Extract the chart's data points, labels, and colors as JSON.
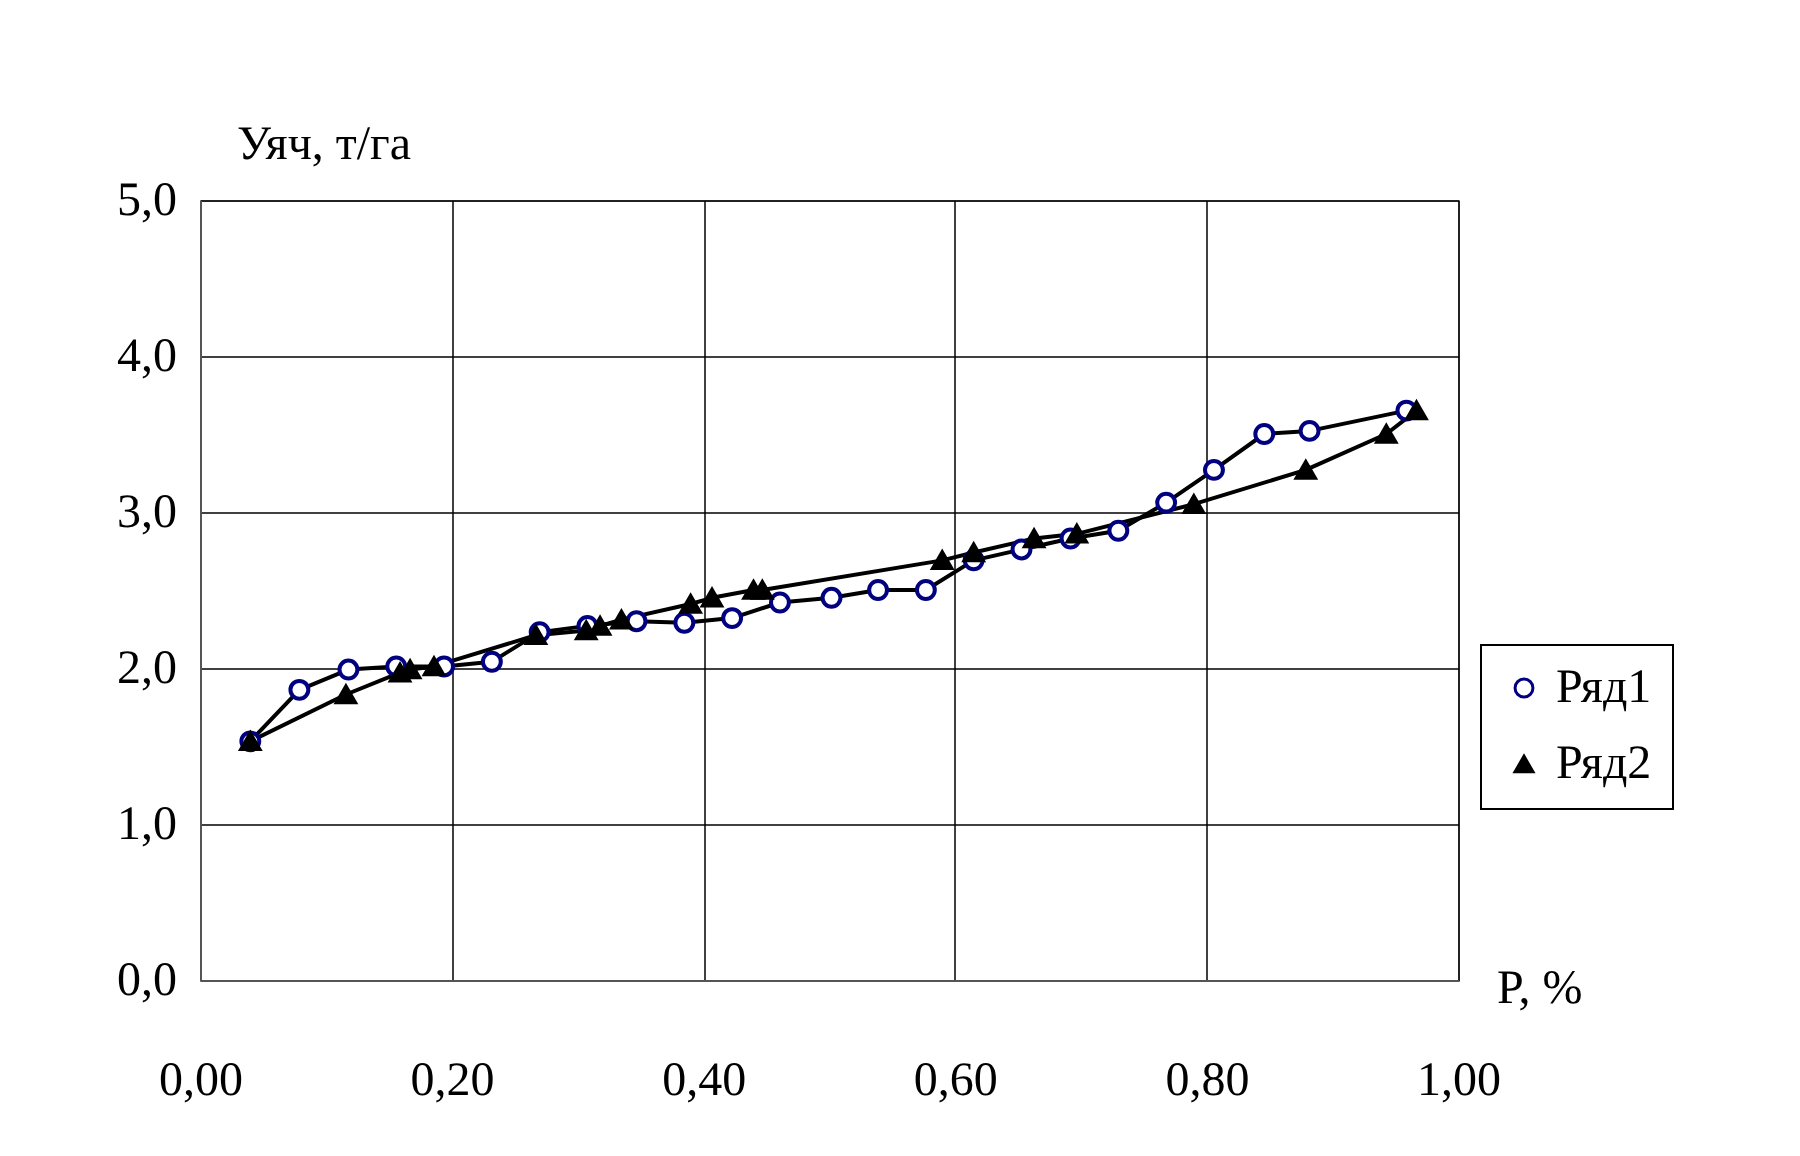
{
  "chart_data": {
    "type": "line",
    "xlabel": "P, %",
    "ylabel": "Уяч, т/га",
    "xlim": [
      0,
      1
    ],
    "ylim": [
      0,
      5
    ],
    "xticks": [
      {
        "value": 0,
        "label": "0,00"
      },
      {
        "value": 0.2,
        "label": "0,20"
      },
      {
        "value": 0.4,
        "label": "0,40"
      },
      {
        "value": 0.6,
        "label": "0,60"
      },
      {
        "value": 0.8,
        "label": "0,80"
      },
      {
        "value": 1,
        "label": "1,00"
      }
    ],
    "yticks": [
      {
        "value": 0,
        "label": "0,0"
      },
      {
        "value": 1,
        "label": "1,0"
      },
      {
        "value": 2,
        "label": "2,0"
      },
      {
        "value": 3,
        "label": "3,0"
      },
      {
        "value": 4,
        "label": "4,0"
      },
      {
        "value": 5,
        "label": "5,0"
      }
    ],
    "grid": true,
    "legend": "right",
    "line_style": "solid",
    "series": [
      {
        "name": "Ряд1",
        "color": "#000080",
        "marker": "circle",
        "x": [
          0.04,
          0.079,
          0.118,
          0.156,
          0.194,
          0.232,
          0.27,
          0.308,
          0.347,
          0.385,
          0.423,
          0.461,
          0.502,
          0.539,
          0.577,
          0.615,
          0.653,
          0.692,
          0.73,
          0.768,
          0.806,
          0.846,
          0.882,
          0.959
        ],
        "values": [
          1.53,
          1.86,
          1.99,
          2.01,
          2.01,
          2.04,
          2.23,
          2.27,
          2.3,
          2.29,
          2.32,
          2.42,
          2.45,
          2.5,
          2.5,
          2.69,
          2.76,
          2.83,
          2.88,
          3.06,
          3.27,
          3.5,
          3.52,
          3.65
        ]
      },
      {
        "name": "Ряд2",
        "color": "#000000",
        "marker": "triangle",
        "x": [
          0.04,
          0.116,
          0.159,
          0.167,
          0.186,
          0.267,
          0.307,
          0.318,
          0.335,
          0.39,
          0.407,
          0.44,
          0.447,
          0.59,
          0.615,
          0.663,
          0.697,
          0.79,
          0.879,
          0.943,
          0.967
        ],
        "values": [
          1.53,
          1.83,
          1.97,
          1.99,
          2.01,
          2.21,
          2.24,
          2.27,
          2.31,
          2.41,
          2.45,
          2.5,
          2.5,
          2.69,
          2.74,
          2.83,
          2.86,
          3.05,
          3.27,
          3.5,
          3.65
        ]
      }
    ]
  }
}
